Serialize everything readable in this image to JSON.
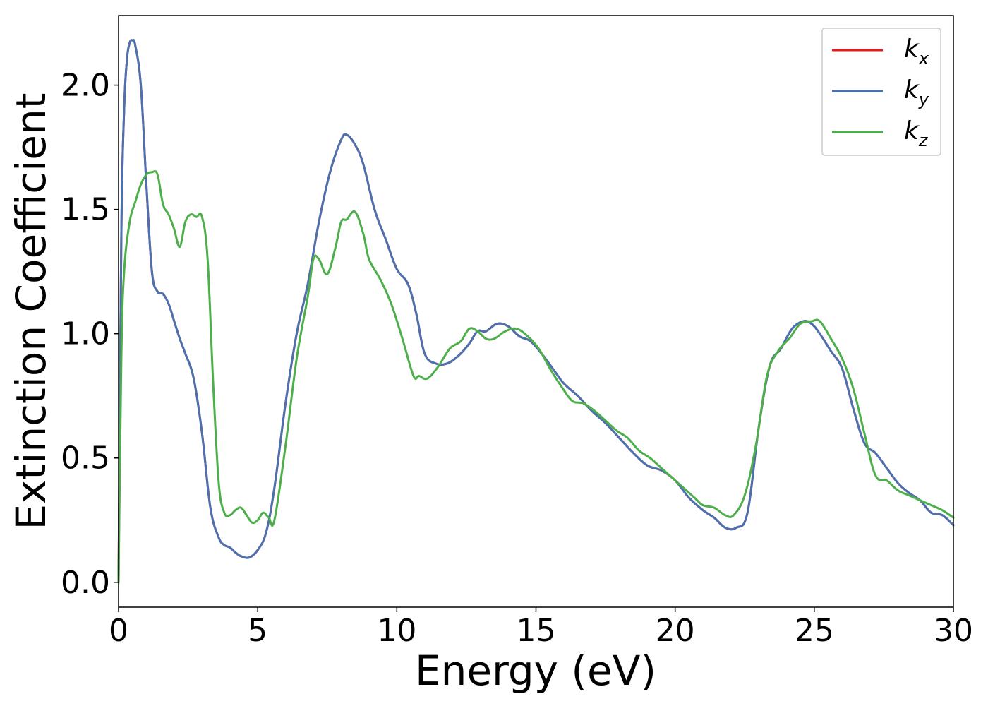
{
  "chart_data": {
    "type": "line",
    "xlabel": "Energy (eV)",
    "ylabel": "Extinction Coefficient",
    "xlim": [
      0,
      30
    ],
    "ylim": [
      -0.1,
      2.28
    ],
    "xticks": [
      0,
      5,
      10,
      15,
      20,
      25,
      30
    ],
    "xtick_labels": [
      "0",
      "5",
      "10",
      "15",
      "20",
      "25",
      "30"
    ],
    "yticks": [
      0.0,
      0.5,
      1.0,
      1.5,
      2.0
    ],
    "ytick_labels": [
      "0.0",
      "0.5",
      "1.0",
      "1.5",
      "2.0"
    ],
    "grid": false,
    "legend_position": "top-right",
    "series": [
      {
        "name": "k",
        "subscript": "x",
        "color": "#e41a1c",
        "x": [
          0,
          0.1,
          0.2,
          0.3,
          0.4,
          0.5,
          0.6,
          0.8,
          1.0,
          1.2,
          1.4,
          1.6,
          1.8,
          2.0,
          2.2,
          2.4,
          2.7,
          3.0,
          3.3,
          3.6,
          3.8,
          4.0,
          4.2,
          4.4,
          4.7,
          5.0,
          5.3,
          5.6,
          6.0,
          6.4,
          6.8,
          7.2,
          7.6,
          8.0,
          8.2,
          8.5,
          8.8,
          9.2,
          9.6,
          10.0,
          10.4,
          10.7,
          11.0,
          11.4,
          11.8,
          12.2,
          12.6,
          12.9,
          13.2,
          13.6,
          14.0,
          14.4,
          14.8,
          15.2,
          15.6,
          16.0,
          16.5,
          17.0,
          17.5,
          18.0,
          18.5,
          19.0,
          19.5,
          20.0,
          20.5,
          21.0,
          21.4,
          21.8,
          22.2,
          22.6,
          23.0,
          23.4,
          23.8,
          24.2,
          24.6,
          24.9,
          25.2,
          25.6,
          26.0,
          26.4,
          26.8,
          27.2,
          27.6,
          28.0,
          28.4,
          28.8,
          29.2,
          29.6,
          30.0
        ],
        "y": [
          0.0,
          1.4,
          1.9,
          2.1,
          2.17,
          2.18,
          2.16,
          2.0,
          1.6,
          1.25,
          1.17,
          1.16,
          1.12,
          1.05,
          0.98,
          0.92,
          0.82,
          0.6,
          0.3,
          0.18,
          0.15,
          0.14,
          0.12,
          0.105,
          0.1,
          0.13,
          0.2,
          0.38,
          0.72,
          1.0,
          1.2,
          1.45,
          1.65,
          1.78,
          1.8,
          1.76,
          1.68,
          1.5,
          1.38,
          1.26,
          1.2,
          1.08,
          0.92,
          0.88,
          0.88,
          0.91,
          0.96,
          1.01,
          1.01,
          1.04,
          1.03,
          0.99,
          0.97,
          0.92,
          0.86,
          0.8,
          0.75,
          0.69,
          0.64,
          0.58,
          0.52,
          0.47,
          0.45,
          0.41,
          0.34,
          0.29,
          0.26,
          0.22,
          0.22,
          0.28,
          0.62,
          0.87,
          0.94,
          1.02,
          1.05,
          1.04,
          1.0,
          0.93,
          0.86,
          0.7,
          0.56,
          0.52,
          0.46,
          0.4,
          0.36,
          0.33,
          0.28,
          0.27,
          0.23
        ]
      },
      {
        "name": "k",
        "subscript": "y",
        "color": "#4a72b0",
        "x": [
          0,
          0.1,
          0.2,
          0.3,
          0.4,
          0.5,
          0.6,
          0.8,
          1.0,
          1.2,
          1.4,
          1.6,
          1.8,
          2.0,
          2.2,
          2.4,
          2.7,
          3.0,
          3.3,
          3.6,
          3.8,
          4.0,
          4.2,
          4.4,
          4.7,
          5.0,
          5.3,
          5.6,
          6.0,
          6.4,
          6.8,
          7.2,
          7.6,
          8.0,
          8.2,
          8.5,
          8.8,
          9.2,
          9.6,
          10.0,
          10.4,
          10.7,
          11.0,
          11.4,
          11.8,
          12.2,
          12.6,
          12.9,
          13.2,
          13.6,
          14.0,
          14.4,
          14.8,
          15.2,
          15.6,
          16.0,
          16.5,
          17.0,
          17.5,
          18.0,
          18.5,
          19.0,
          19.5,
          20.0,
          20.5,
          21.0,
          21.4,
          21.8,
          22.2,
          22.6,
          23.0,
          23.4,
          23.8,
          24.2,
          24.6,
          24.9,
          25.2,
          25.6,
          26.0,
          26.4,
          26.8,
          27.2,
          27.6,
          28.0,
          28.4,
          28.8,
          29.2,
          29.6,
          30.0
        ],
        "y": [
          0.0,
          1.4,
          1.9,
          2.1,
          2.17,
          2.18,
          2.16,
          2.0,
          1.6,
          1.25,
          1.17,
          1.16,
          1.12,
          1.05,
          0.98,
          0.92,
          0.82,
          0.6,
          0.3,
          0.18,
          0.15,
          0.14,
          0.12,
          0.105,
          0.1,
          0.13,
          0.2,
          0.38,
          0.72,
          1.0,
          1.2,
          1.45,
          1.65,
          1.78,
          1.8,
          1.76,
          1.68,
          1.5,
          1.38,
          1.26,
          1.2,
          1.08,
          0.92,
          0.88,
          0.88,
          0.91,
          0.96,
          1.01,
          1.01,
          1.04,
          1.03,
          0.99,
          0.97,
          0.92,
          0.86,
          0.8,
          0.75,
          0.69,
          0.64,
          0.58,
          0.52,
          0.47,
          0.45,
          0.41,
          0.34,
          0.29,
          0.26,
          0.22,
          0.22,
          0.28,
          0.62,
          0.87,
          0.94,
          1.02,
          1.05,
          1.04,
          1.0,
          0.93,
          0.86,
          0.7,
          0.56,
          0.52,
          0.46,
          0.4,
          0.36,
          0.33,
          0.28,
          0.27,
          0.23
        ]
      },
      {
        "name": "k",
        "subscript": "z",
        "color": "#4daf4a",
        "x": [
          0,
          0.1,
          0.2,
          0.4,
          0.6,
          0.8,
          1.0,
          1.2,
          1.4,
          1.6,
          1.8,
          2.0,
          2.2,
          2.4,
          2.6,
          2.8,
          3.0,
          3.2,
          3.4,
          3.6,
          3.8,
          4.0,
          4.2,
          4.4,
          4.6,
          4.8,
          5.0,
          5.2,
          5.4,
          5.6,
          6.0,
          6.4,
          6.8,
          7.0,
          7.2,
          7.5,
          7.8,
          8.0,
          8.2,
          8.5,
          8.8,
          9.0,
          9.4,
          9.8,
          10.2,
          10.6,
          10.8,
          11.1,
          11.5,
          11.9,
          12.3,
          12.6,
          12.9,
          13.2,
          13.5,
          13.9,
          14.3,
          14.7,
          15.1,
          15.5,
          15.9,
          16.3,
          16.7,
          17.1,
          17.5,
          17.9,
          18.3,
          18.7,
          19.1,
          19.5,
          19.9,
          20.3,
          20.7,
          21.0,
          21.4,
          21.8,
          22.1,
          22.5,
          22.9,
          23.3,
          23.7,
          24.1,
          24.5,
          24.9,
          25.2,
          25.6,
          26.0,
          26.4,
          26.8,
          27.2,
          27.6,
          28.0,
          28.4,
          28.8,
          29.2,
          29.6,
          30.0
        ],
        "y": [
          0.0,
          0.9,
          1.25,
          1.45,
          1.53,
          1.6,
          1.64,
          1.65,
          1.64,
          1.52,
          1.48,
          1.42,
          1.35,
          1.45,
          1.48,
          1.47,
          1.47,
          1.3,
          0.8,
          0.4,
          0.28,
          0.27,
          0.29,
          0.3,
          0.27,
          0.24,
          0.25,
          0.28,
          0.26,
          0.25,
          0.55,
          0.9,
          1.15,
          1.3,
          1.3,
          1.24,
          1.35,
          1.45,
          1.46,
          1.49,
          1.4,
          1.3,
          1.22,
          1.12,
          0.98,
          0.83,
          0.83,
          0.82,
          0.87,
          0.94,
          0.97,
          1.02,
          1.01,
          0.98,
          0.98,
          1.01,
          1.02,
          0.99,
          0.94,
          0.86,
          0.79,
          0.73,
          0.72,
          0.69,
          0.65,
          0.61,
          0.58,
          0.53,
          0.5,
          0.46,
          0.42,
          0.38,
          0.34,
          0.31,
          0.3,
          0.27,
          0.27,
          0.35,
          0.55,
          0.83,
          0.93,
          0.98,
          1.04,
          1.05,
          1.05,
          0.98,
          0.9,
          0.78,
          0.6,
          0.43,
          0.41,
          0.37,
          0.35,
          0.33,
          0.31,
          0.29,
          0.26
        ]
      }
    ]
  }
}
